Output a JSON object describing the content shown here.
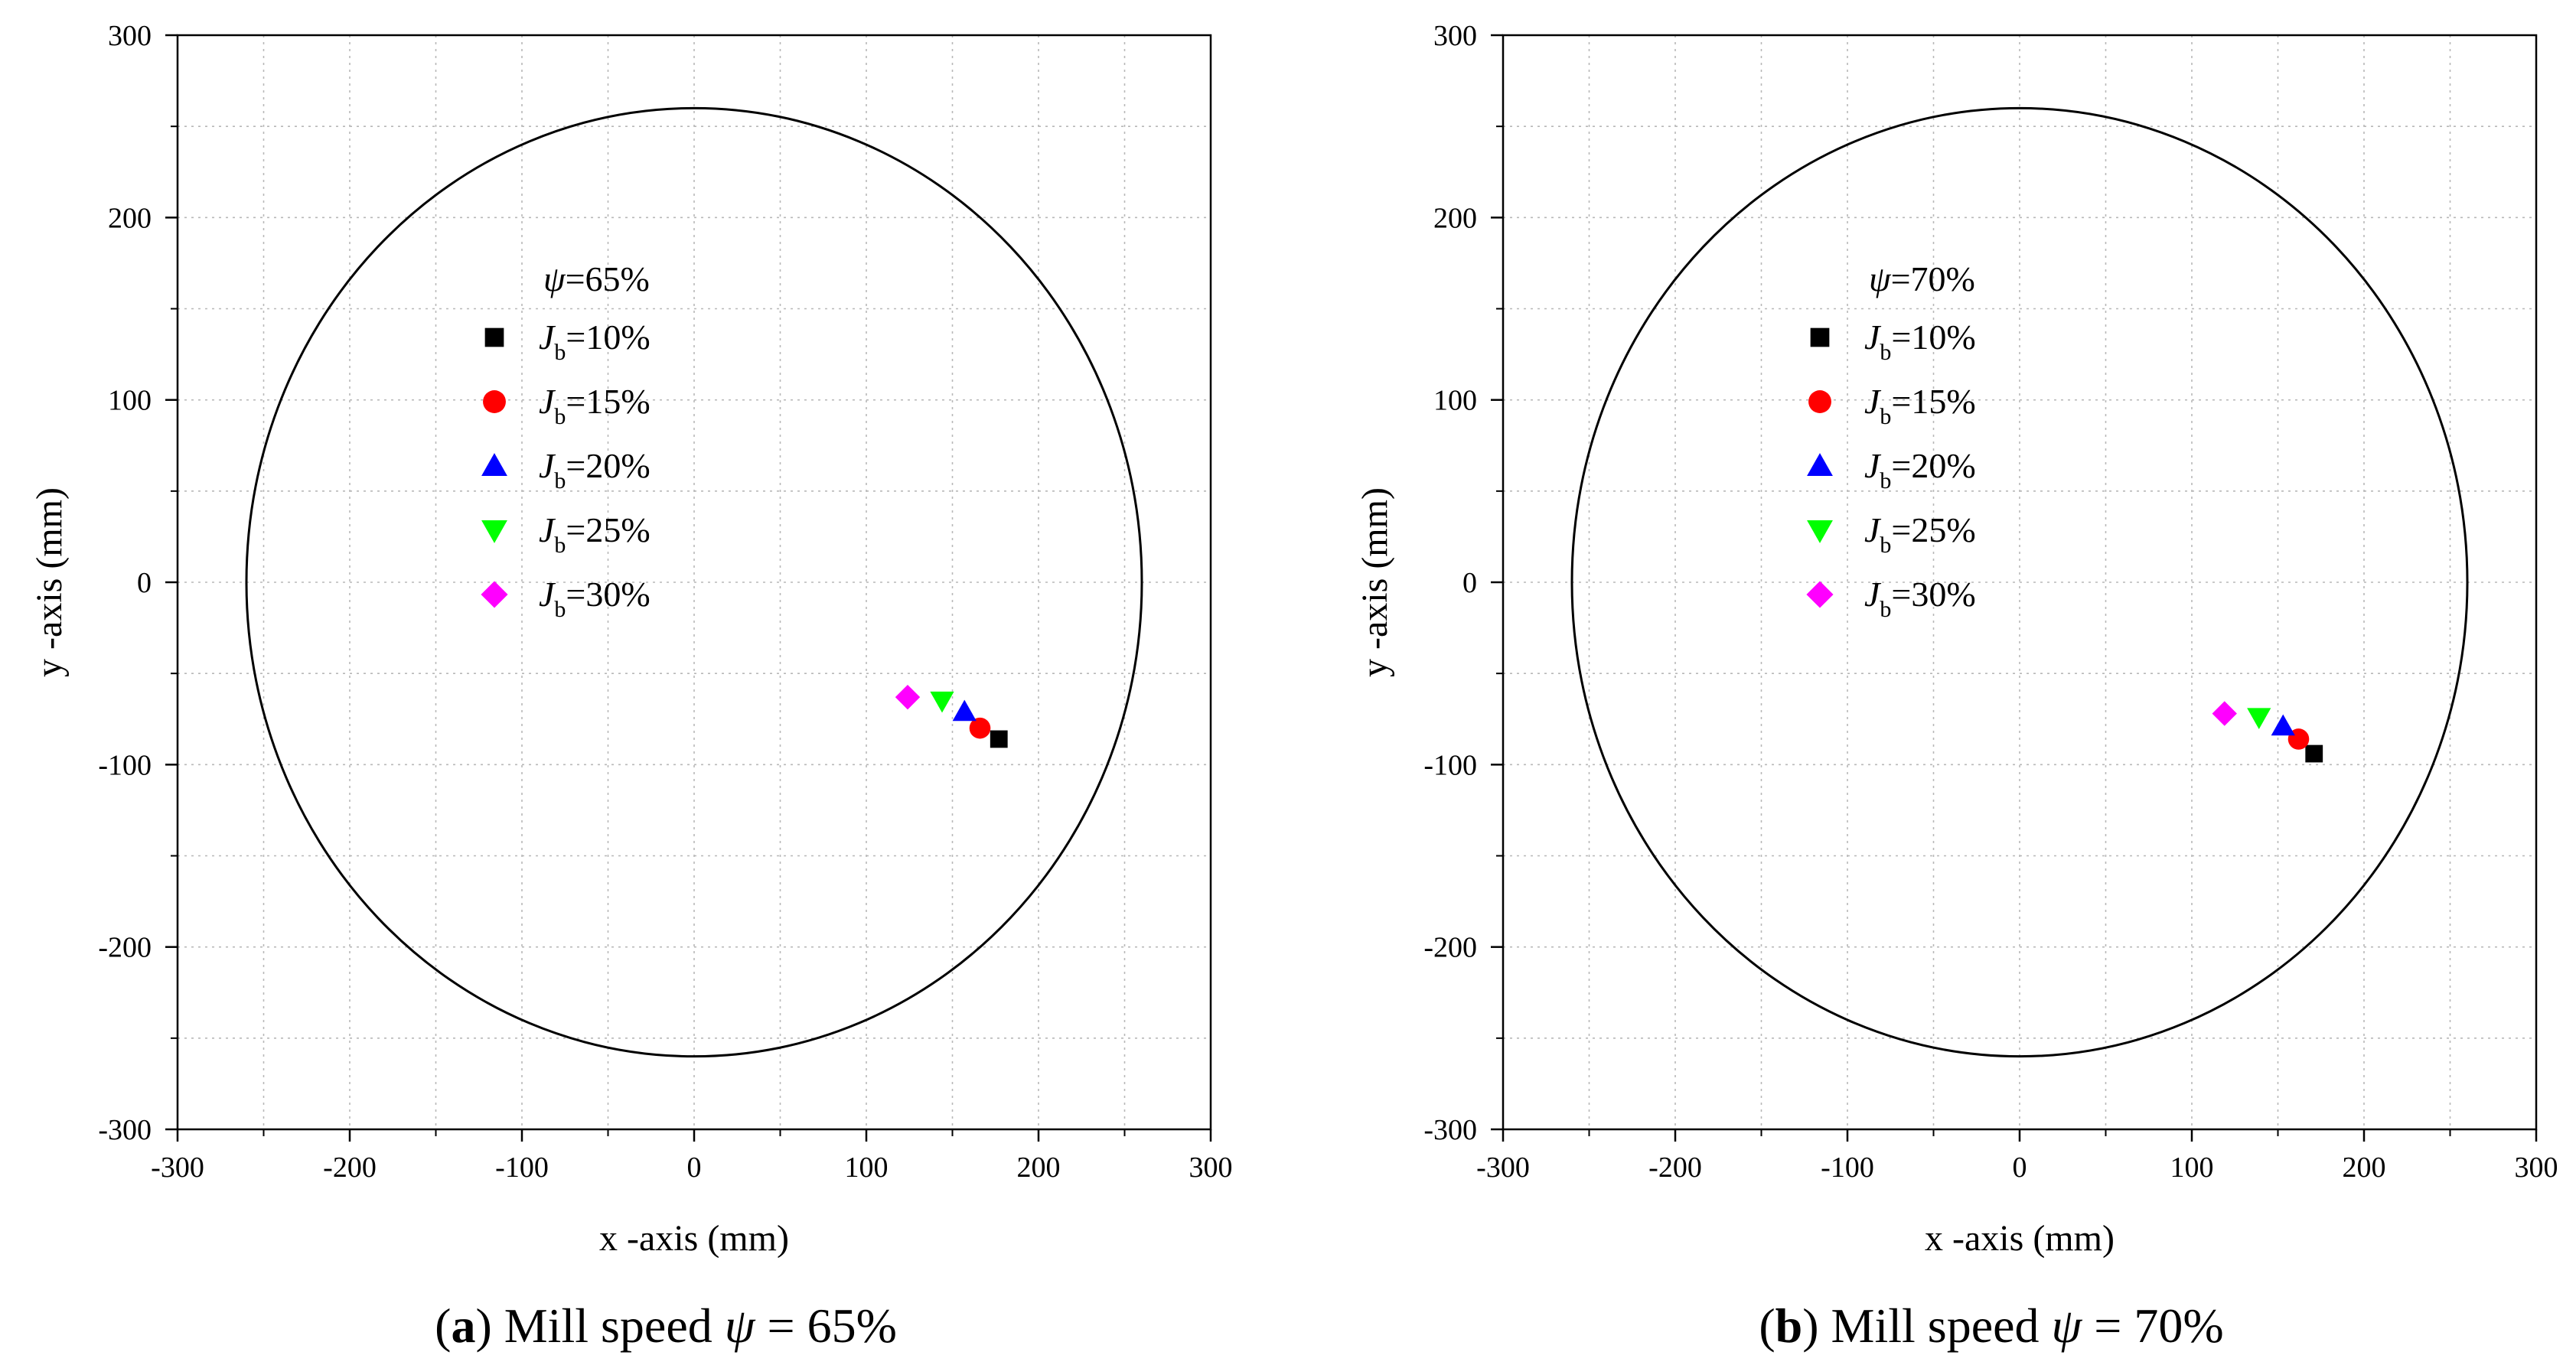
{
  "chart_data": [
    {
      "type": "scatter",
      "panel_label": "a",
      "caption": {
        "label": "a",
        "prefix": "Mill speed ",
        "symbol": "ψ",
        "suffix": " = 65%"
      },
      "xlabel": "x -axis (mm)",
      "ylabel": "y -axis (mm)",
      "xlim": [
        -300,
        300
      ],
      "ylim": [
        -300,
        300
      ],
      "xticks": [
        -300,
        -200,
        -100,
        0,
        100,
        200,
        300
      ],
      "yticks": [
        -300,
        -200,
        -100,
        0,
        100,
        200,
        300
      ],
      "grid": true,
      "circle": {
        "cx": 0,
        "cy": 0,
        "r": 260
      },
      "legend_title": {
        "symbol": "ψ",
        "text": "=65%"
      },
      "legend_position": "upper-left inside circle",
      "series": [
        {
          "name": "Jb=10%",
          "var": "J",
          "sub": "b",
          "value": "=10%",
          "marker": "square",
          "color": "#000000",
          "x": 177,
          "y": -86
        },
        {
          "name": "Jb=15%",
          "var": "J",
          "sub": "b",
          "value": "=15%",
          "marker": "circle",
          "color": "#ff0000",
          "x": 166,
          "y": -80
        },
        {
          "name": "Jb=20%",
          "var": "J",
          "sub": "b",
          "value": "=20%",
          "marker": "triangle-up",
          "color": "#0000ff",
          "x": 157,
          "y": -71
        },
        {
          "name": "Jb=25%",
          "var": "J",
          "sub": "b",
          "value": "=25%",
          "marker": "triangle-down",
          "color": "#00ff00",
          "x": 144,
          "y": -65
        },
        {
          "name": "Jb=30%",
          "var": "J",
          "sub": "b",
          "value": "=30%",
          "marker": "diamond",
          "color": "#ff00ff",
          "x": 124,
          "y": -63
        }
      ]
    },
    {
      "type": "scatter",
      "panel_label": "b",
      "caption": {
        "label": "b",
        "prefix": "Mill speed ",
        "symbol": "ψ",
        "suffix": " = 70%"
      },
      "xlabel": "x -axis (mm)",
      "ylabel": "y -axis (mm)",
      "xlim": [
        -300,
        300
      ],
      "ylim": [
        -300,
        300
      ],
      "xticks": [
        -300,
        -200,
        -100,
        0,
        100,
        200,
        300
      ],
      "yticks": [
        -300,
        -200,
        -100,
        0,
        100,
        200,
        300
      ],
      "grid": true,
      "circle": {
        "cx": 0,
        "cy": 0,
        "r": 260
      },
      "legend_title": {
        "symbol": "ψ",
        "text": "=70%"
      },
      "legend_position": "upper-left inside circle",
      "series": [
        {
          "name": "Jb=10%",
          "var": "J",
          "sub": "b",
          "value": "=10%",
          "marker": "square",
          "color": "#000000",
          "x": 171,
          "y": -94
        },
        {
          "name": "Jb=15%",
          "var": "J",
          "sub": "b",
          "value": "=15%",
          "marker": "circle",
          "color": "#ff0000",
          "x": 162,
          "y": -86
        },
        {
          "name": "Jb=20%",
          "var": "J",
          "sub": "b",
          "value": "=20%",
          "marker": "triangle-up",
          "color": "#0000ff",
          "x": 153,
          "y": -79
        },
        {
          "name": "Jb=25%",
          "var": "J",
          "sub": "b",
          "value": "=25%",
          "marker": "triangle-down",
          "color": "#00ff00",
          "x": 139,
          "y": -74
        },
        {
          "name": "Jb=30%",
          "var": "J",
          "sub": "b",
          "value": "=30%",
          "marker": "diamond",
          "color": "#ff00ff",
          "x": 119,
          "y": -72
        }
      ]
    }
  ]
}
